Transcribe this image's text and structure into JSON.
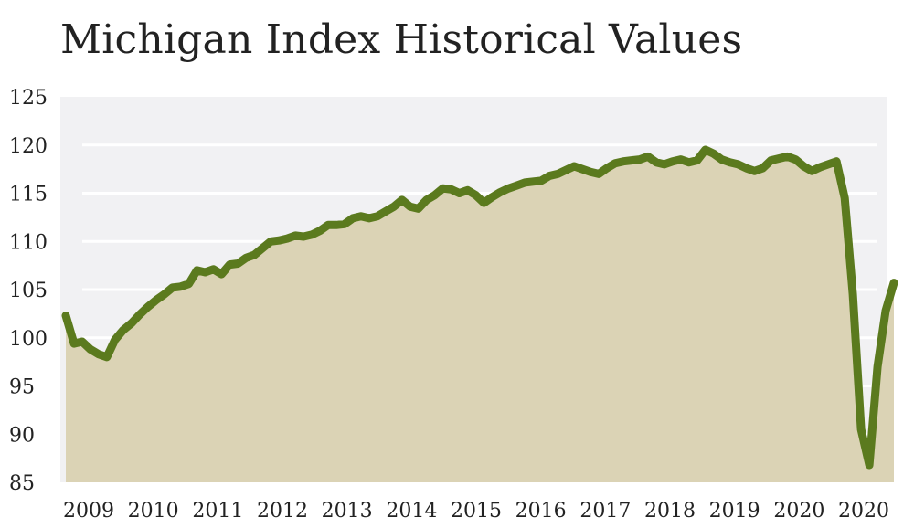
{
  "chart_data": {
    "type": "area",
    "title": "Michigan Index Historical Values",
    "xlabel": "",
    "ylabel": "",
    "ylim": [
      85,
      125
    ],
    "yticks": [
      85,
      90,
      95,
      100,
      105,
      110,
      115,
      120,
      125
    ],
    "xticks": [
      "2009",
      "2010",
      "2011",
      "2012",
      "2013",
      "2014",
      "2015",
      "2016",
      "2017",
      "2018",
      "2019",
      "2020",
      "2020"
    ],
    "grid": true,
    "legend": "none",
    "colors": {
      "line": "#5b7a1e",
      "fill": "#dbd3b5",
      "plot_bg": "#f1f1f3",
      "grid": "#ffffff"
    },
    "series": [
      {
        "values": [
          102.3,
          99.4,
          99.6,
          98.8,
          98.3,
          98.0,
          99.8,
          100.8,
          101.5,
          102.4,
          103.2,
          103.9,
          104.5,
          105.2,
          105.3,
          105.6,
          107.0,
          106.8,
          107.1,
          106.6,
          107.6,
          107.7,
          108.3,
          108.6,
          109.3,
          110.0,
          110.1,
          110.3,
          110.6,
          110.5,
          110.7,
          111.1,
          111.7,
          111.7,
          111.8,
          112.4,
          112.6,
          112.4,
          112.6,
          113.1,
          113.6,
          114.3,
          113.6,
          113.4,
          114.3,
          114.8,
          115.5,
          115.4,
          115.0,
          115.3,
          114.8,
          114.0,
          114.6,
          115.1,
          115.5,
          115.8,
          116.1,
          116.2,
          116.3,
          116.8,
          117.0,
          117.4,
          117.8,
          117.5,
          117.2,
          117.0,
          117.6,
          118.1,
          118.3,
          118.4,
          118.5,
          118.8,
          118.2,
          118.0,
          118.3,
          118.5,
          118.2,
          118.4,
          119.5,
          119.1,
          118.5,
          118.2,
          118.0,
          117.6,
          117.3,
          117.6,
          118.4,
          118.6,
          118.8,
          118.5,
          117.8,
          117.3,
          117.7,
          118.0,
          118.3,
          114.5,
          104.5,
          90.5,
          86.8,
          97.0,
          102.8,
          105.7
        ]
      }
    ]
  }
}
